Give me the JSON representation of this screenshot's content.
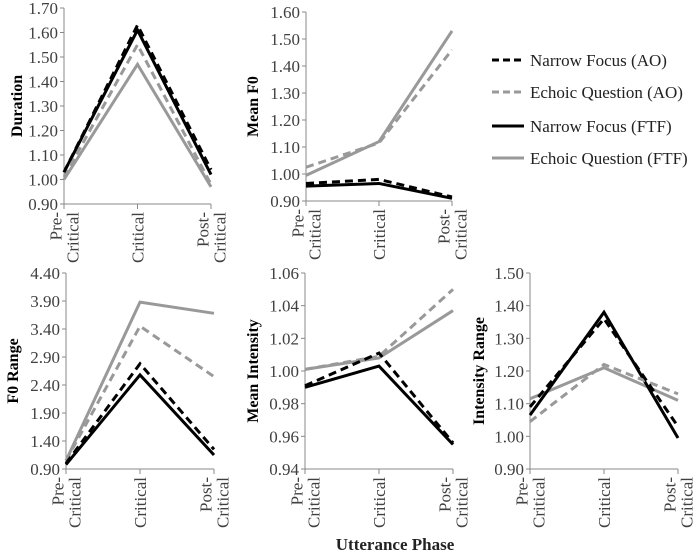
{
  "chart_data": [
    {
      "type": "line",
      "ylabel": "Duration",
      "categories": [
        [
          "Pre-",
          "Critical"
        ],
        [
          "Critical"
        ],
        [
          "Post-",
          "Critical"
        ]
      ],
      "ylim": [
        0.9,
        1.7
      ],
      "yticks": [
        "0.90",
        "1.00",
        "1.10",
        "1.20",
        "1.30",
        "1.40",
        "1.50",
        "1.60",
        "1.70"
      ],
      "series": [
        {
          "name": "Narrow Focus (AO)",
          "values": [
            1.03,
            1.63,
            1.04
          ]
        },
        {
          "name": "Echoic Question (AO)",
          "values": [
            1.01,
            1.55,
            0.98
          ]
        },
        {
          "name": "Narrow Focus (FTF)",
          "values": [
            1.03,
            1.61,
            1.02
          ]
        },
        {
          "name": "Echoic Question (FTF)",
          "values": [
            1.0,
            1.47,
            0.97
          ]
        }
      ]
    },
    {
      "type": "line",
      "ylabel": "Mean F0",
      "categories": [
        [
          "Pre-",
          "Critical"
        ],
        [
          "Critical"
        ],
        [
          "Post-",
          "Critical"
        ]
      ],
      "ylim": [
        0.9,
        1.6
      ],
      "yticks": [
        "0.90",
        "1.00",
        "1.10",
        "1.20",
        "1.30",
        "1.40",
        "1.50",
        "1.60"
      ],
      "series": [
        {
          "name": "Narrow Focus (AO)",
          "values": [
            0.965,
            0.98,
            0.915
          ]
        },
        {
          "name": "Echoic Question (AO)",
          "values": [
            1.025,
            1.115,
            1.46
          ]
        },
        {
          "name": "Narrow Focus (FTF)",
          "values": [
            0.955,
            0.965,
            0.91
          ]
        },
        {
          "name": "Echoic Question (FTF)",
          "values": [
            0.995,
            1.12,
            1.53
          ]
        }
      ]
    },
    {
      "type": "line",
      "ylabel": "F0 Range",
      "categories": [
        [
          "Pre-",
          "Critical"
        ],
        [
          "Critical"
        ],
        [
          "Post-",
          "Critical"
        ]
      ],
      "ylim": [
        0.9,
        4.4
      ],
      "yticks": [
        "0.90",
        "1.40",
        "1.90",
        "2.40",
        "2.90",
        "3.40",
        "3.90",
        "4.40"
      ],
      "series": [
        {
          "name": "Narrow Focus (AO)",
          "values": [
            1.0,
            2.78,
            1.25
          ]
        },
        {
          "name": "Echoic Question (AO)",
          "values": [
            1.05,
            3.45,
            2.55
          ]
        },
        {
          "name": "Narrow Focus (FTF)",
          "values": [
            0.98,
            2.58,
            1.15
          ]
        },
        {
          "name": "Echoic Question (FTF)",
          "values": [
            1.05,
            3.88,
            3.68
          ]
        }
      ]
    },
    {
      "type": "line",
      "ylabel": "Mean Intensity",
      "categories": [
        [
          "Pre-",
          "Critical"
        ],
        [
          "Critical"
        ],
        [
          "Post-",
          "Critical"
        ]
      ],
      "ylim": [
        0.94,
        1.06
      ],
      "yticks": [
        "0.94",
        "0.96",
        "0.98",
        "1.00",
        "1.02",
        "1.04",
        "1.06"
      ],
      "series": [
        {
          "name": "Narrow Focus (AO)",
          "values": [
            0.991,
            1.011,
            0.956
          ]
        },
        {
          "name": "Echoic Question (AO)",
          "values": [
            1.001,
            1.009,
            1.05
          ]
        },
        {
          "name": "Narrow Focus (FTF)",
          "values": [
            0.99,
            1.003,
            0.955
          ]
        },
        {
          "name": "Echoic Question (FTF)",
          "values": [
            1.001,
            1.008,
            1.037
          ]
        }
      ]
    },
    {
      "type": "line",
      "ylabel": "Intensity Range",
      "categories": [
        [
          "Pre-",
          "Critical"
        ],
        [
          "Critical"
        ],
        [
          "Post-",
          "Critical"
        ]
      ],
      "ylim": [
        0.9,
        1.5
      ],
      "yticks": [
        "0.90",
        "1.00",
        "1.10",
        "1.20",
        "1.30",
        "1.40",
        "1.50"
      ],
      "series": [
        {
          "name": "Narrow Focus (AO)",
          "values": [
            1.09,
            1.36,
            1.03
          ]
        },
        {
          "name": "Echoic Question (AO)",
          "values": [
            1.045,
            1.22,
            1.13
          ]
        },
        {
          "name": "Narrow Focus (FTF)",
          "values": [
            1.065,
            1.38,
            0.995
          ]
        },
        {
          "name": "Echoic Question (FTF)",
          "values": [
            1.115,
            1.21,
            1.11
          ]
        }
      ]
    }
  ],
  "legend": {
    "placement": "top-right",
    "items": [
      {
        "label": "Narrow Focus (AO)",
        "color": "#000000",
        "style": "dashed"
      },
      {
        "label": "Echoic Question (AO)",
        "color": "#999999",
        "style": "dashed"
      },
      {
        "label": "Narrow Focus (FTF)",
        "color": "#000000",
        "style": "solid"
      },
      {
        "label": "Echoic Question (FTF)",
        "color": "#999999",
        "style": "solid"
      }
    ]
  },
  "xlabel": "Utterance Phase",
  "grid": false
}
